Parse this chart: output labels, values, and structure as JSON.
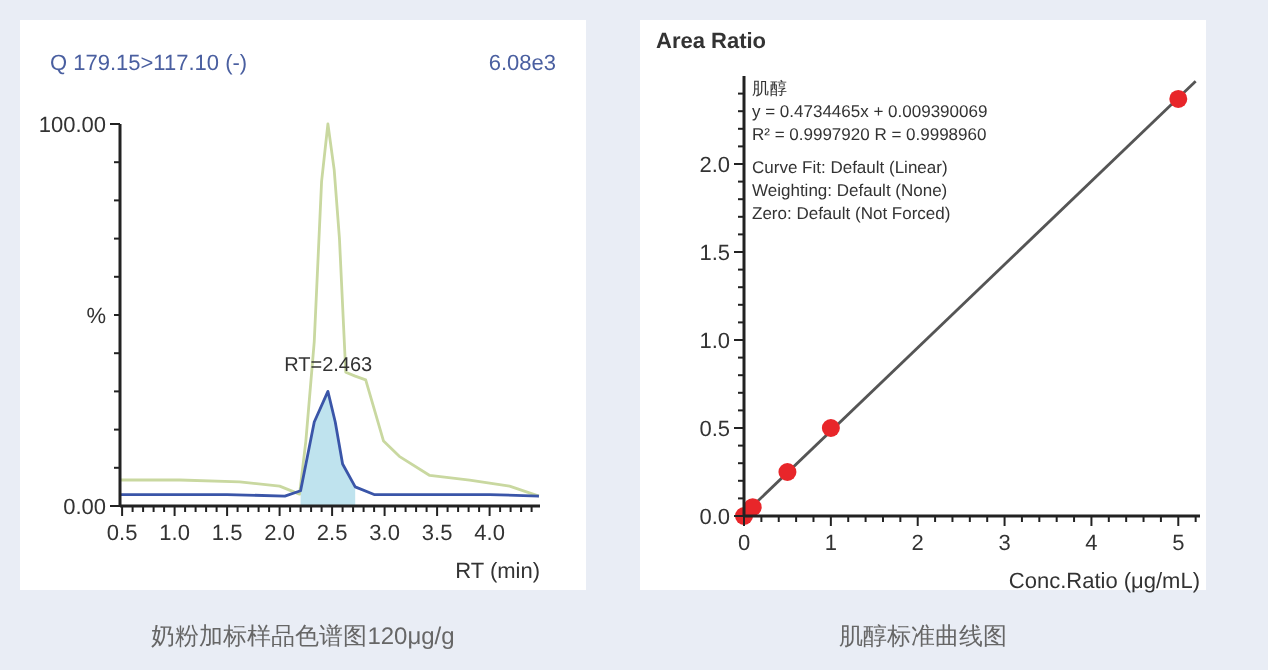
{
  "chart_data": [
    {
      "type": "line",
      "title": "Q 179.15>117.10 (-)",
      "xlabel": "RT (min)",
      "ylabel": "%",
      "xlim": [
        0.48,
        4.48
      ],
      "ylim": [
        0,
        100
      ],
      "xticks": [
        0.5,
        {
          "value": 0.6,
          "label": null
        },
        {
          "value": 0.7,
          "label": null
        },
        {
          "value": 0.8,
          "label": null
        },
        {
          "value": 0.9,
          "label": null
        },
        {
          "value": 1.0,
          "label": "1.0"
        },
        {
          "value": 1.1,
          "label": null
        },
        {
          "value": 1.2,
          "label": null
        },
        {
          "value": 1.3,
          "label": null
        },
        {
          "value": 1.4,
          "label": null
        },
        1.5,
        {
          "value": 1.6,
          "label": null
        },
        {
          "value": 1.7,
          "label": null
        },
        {
          "value": 1.8,
          "label": null
        },
        {
          "value": 1.9,
          "label": null
        },
        {
          "value": 2.0,
          "label": "2.0"
        },
        {
          "value": 2.1,
          "label": null
        },
        {
          "value": 2.2,
          "label": null
        },
        {
          "value": 2.3,
          "label": null
        },
        {
          "value": 2.4,
          "label": null
        },
        2.5,
        {
          "value": 2.6,
          "label": null
        },
        {
          "value": 2.7,
          "label": null
        },
        {
          "value": 2.8,
          "label": null
        },
        {
          "value": 2.9,
          "label": null
        },
        {
          "value": 3.0,
          "label": "3.0"
        },
        {
          "value": 3.1,
          "label": null
        },
        {
          "value": 3.2,
          "label": null
        },
        {
          "value": 3.3,
          "label": null
        },
        {
          "value": 3.4,
          "label": null
        },
        3.5,
        {
          "value": 3.6,
          "label": null
        },
        {
          "value": 3.7,
          "label": null
        },
        {
          "value": 3.8,
          "label": null
        },
        {
          "value": 3.9,
          "label": null
        },
        {
          "value": 4.0,
          "label": "4.0"
        },
        {
          "value": 4.1,
          "label": null
        },
        {
          "value": 4.2,
          "label": null
        },
        {
          "value": 4.3,
          "label": null
        },
        {
          "value": 4.4,
          "label": null
        }
      ],
      "yticks": [
        {
          "value": 0,
          "label": "0.00"
        },
        {
          "value": 10,
          "label": null
        },
        {
          "value": 20,
          "label": null
        },
        {
          "value": 30,
          "label": null
        },
        {
          "value": 40,
          "label": null
        },
        {
          "value": 50,
          "label": null
        },
        {
          "value": 60,
          "label": null
        },
        {
          "value": 70,
          "label": null
        },
        {
          "value": 80,
          "label": null
        },
        {
          "value": 90,
          "label": null
        },
        {
          "value": 100,
          "label": "100.00"
        }
      ],
      "grid": false,
      "series": [
        {
          "type": "area",
          "color": "#bfe3ee",
          "x": [
            2.2,
            2.33,
            2.46,
            2.53,
            2.6,
            2.72
          ],
          "values": [
            4,
            22,
            30,
            22,
            11,
            5
          ]
        },
        {
          "color": "#c9d8a0",
          "x": [
            0.48,
            1.05,
            1.62,
            2.0,
            2.19,
            2.25,
            2.33,
            2.4,
            2.46,
            2.52,
            2.57,
            2.63,
            2.72,
            2.82,
            2.99,
            3.14,
            3.43,
            3.81,
            4.19,
            4.47
          ],
          "values": [
            6.8,
            6.8,
            6.3,
            5.2,
            3.1,
            17,
            43,
            85,
            100,
            88,
            70,
            35,
            34,
            33,
            17,
            13,
            8,
            6.8,
            5.2,
            2.6
          ]
        },
        {
          "color": "#3a55a8",
          "x": [
            0.48,
            1.0,
            1.5,
            2.05,
            2.2,
            2.33,
            2.46,
            2.53,
            2.6,
            2.72,
            2.9,
            3.5,
            4.0,
            4.47
          ],
          "values": [
            3,
            3,
            3,
            2.6,
            4,
            22,
            30,
            22,
            11,
            5,
            3,
            3,
            3,
            2.6
          ]
        }
      ],
      "annotations": [
        {
          "text": "RT=2.463",
          "x": 2.463,
          "y": 30
        },
        "6.08e3",
        "奶粉加标样品色谱图120μg/g"
      ]
    },
    {
      "type": "scatter",
      "xlabel": "Conc.Ratio (μg/mL)",
      "ylabel": "Area Ratio",
      "xlim": [
        0,
        5.25
      ],
      "ylim": [
        0,
        2.5
      ],
      "xticks": [
        0,
        {
          "value": 0.2,
          "label": null
        },
        {
          "value": 0.4,
          "label": null
        },
        {
          "value": 0.6,
          "label": null
        },
        {
          "value": 0.8,
          "label": null
        },
        1,
        {
          "value": 1.2,
          "label": null
        },
        {
          "value": 1.4,
          "label": null
        },
        {
          "value": 1.6,
          "label": null
        },
        {
          "value": 1.8,
          "label": null
        },
        2,
        {
          "value": 2.2,
          "label": null
        },
        {
          "value": 2.4,
          "label": null
        },
        {
          "value": 2.6,
          "label": null
        },
        {
          "value": 2.8,
          "label": null
        },
        3,
        {
          "value": 3.2,
          "label": null
        },
        {
          "value": 3.4,
          "label": null
        },
        {
          "value": 3.6,
          "label": null
        },
        {
          "value": 3.8,
          "label": null
        },
        4,
        {
          "value": 4.2,
          "label": null
        },
        {
          "value": 4.4,
          "label": null
        },
        {
          "value": 4.6,
          "label": null
        },
        {
          "value": 4.8,
          "label": null
        },
        5,
        {
          "value": 5.2,
          "label": null
        }
      ],
      "yticks": [
        {
          "value": 0,
          "label": "0.0"
        },
        {
          "value": 0.1,
          "label": null
        },
        {
          "value": 0.2,
          "label": null
        },
        {
          "value": 0.3,
          "label": null
        },
        {
          "value": 0.4,
          "label": null
        },
        {
          "value": 0.5,
          "label": "0.5"
        },
        {
          "value": 0.6,
          "label": null
        },
        {
          "value": 0.7,
          "label": null
        },
        {
          "value": 0.8,
          "label": null
        },
        {
          "value": 0.9,
          "label": null
        },
        {
          "value": 1.0,
          "label": "1.0"
        },
        {
          "value": 1.1,
          "label": null
        },
        {
          "value": 1.2,
          "label": null
        },
        {
          "value": 1.3,
          "label": null
        },
        {
          "value": 1.4,
          "label": null
        },
        {
          "value": 1.5,
          "label": "1.5"
        },
        {
          "value": 1.6,
          "label": null
        },
        {
          "value": 1.7,
          "label": null
        },
        {
          "value": 1.8,
          "label": null
        },
        {
          "value": 1.9,
          "label": null
        },
        {
          "value": 2.0,
          "label": "2.0"
        },
        {
          "value": 2.1,
          "label": null
        },
        {
          "value": 2.2,
          "label": null
        },
        {
          "value": 2.3,
          "label": null
        },
        {
          "value": 2.4,
          "label": null
        }
      ],
      "grid": false,
      "series": [
        {
          "type": "line",
          "marker": "none",
          "color": "#555555",
          "x": [
            0,
            5.2
          ],
          "values": [
            0.01,
            2.47
          ]
        },
        {
          "marker": "circle",
          "color": "#e8262a",
          "x": [
            0,
            0.1,
            0.5,
            1,
            5
          ],
          "values": [
            0,
            0.05,
            0.25,
            0.5,
            2.37
          ]
        }
      ],
      "annotations": [
        "肌醇",
        "y = 0.4734465x + 0.009390069",
        "R² = 0.9997920    R = 0.9998960",
        "Curve Fit: Default (Linear)",
        "Weighting: Default (None)",
        "Zero: Default (Not Forced)",
        "肌醇标准曲线图"
      ]
    }
  ]
}
